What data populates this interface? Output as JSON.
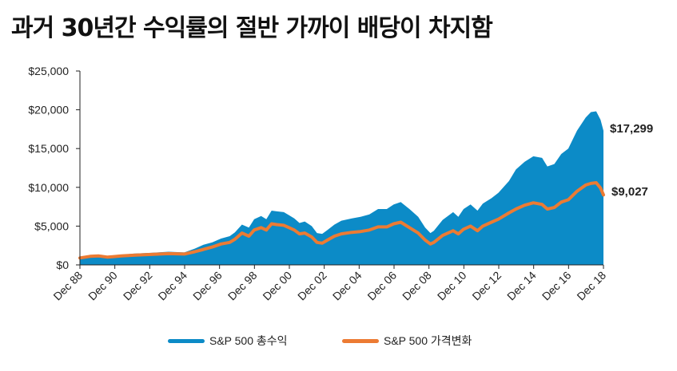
{
  "title": "과거 30년간 수익률의 절반 가까이 배당이 차지함",
  "colors": {
    "total": "#0c8bc7",
    "price": "#ec7b33",
    "axis": "#222222"
  },
  "chart_data": {
    "type": "area",
    "ylim": [
      0,
      25000
    ],
    "yticks": [
      "$0",
      "$5,000",
      "$10,000",
      "$15,000",
      "$20,000",
      "$25,000"
    ],
    "ytick_values": [
      0,
      5000,
      10000,
      15000,
      20000,
      25000
    ],
    "xlim": [
      1988.917,
      2018.917
    ],
    "xticks": [
      "Dec 88",
      "Dec 90",
      "Dec 92",
      "Dec 94",
      "Dec 96",
      "Dec 98",
      "Dec 00",
      "Dec 02",
      "Dec 04",
      "Dec 06",
      "Dec 08",
      "Dec 10",
      "Dec 12",
      "Dec 14",
      "Dec 16",
      "Dec 18"
    ],
    "xtick_values": [
      1988.917,
      1990.917,
      1992.917,
      1994.917,
      1996.917,
      1998.917,
      2000.917,
      2002.917,
      2004.917,
      2006.917,
      2008.917,
      2010.917,
      2012.917,
      2014.917,
      2016.917,
      2018.917
    ],
    "grid": false,
    "legend_position": "bottom",
    "series": [
      {
        "name": "S&P 500 총수익",
        "style": "area",
        "end_label": "$17,299",
        "x": [
          1988.917,
          1989.5,
          1990.0,
          1990.5,
          1990.8,
          1991.3,
          1992.0,
          1993.0,
          1994.0,
          1994.9,
          1995.5,
          1996.0,
          1996.5,
          1997.0,
          1997.5,
          1997.8,
          1998.2,
          1998.6,
          1998.9,
          1999.3,
          1999.6,
          1999.9,
          2000.2,
          2000.6,
          2000.9,
          2001.2,
          2001.5,
          2001.8,
          2002.2,
          2002.5,
          2002.8,
          2003.1,
          2003.5,
          2003.9,
          2004.5,
          2005.0,
          2005.5,
          2006.0,
          2006.5,
          2006.9,
          2007.3,
          2007.8,
          2008.3,
          2008.7,
          2009.0,
          2009.2,
          2009.7,
          2010.3,
          2010.6,
          2010.9,
          2011.3,
          2011.7,
          2012.0,
          2012.5,
          2012.9,
          2013.5,
          2013.9,
          2014.4,
          2014.9,
          2015.4,
          2015.7,
          2016.1,
          2016.5,
          2016.9,
          2017.4,
          2017.9,
          2018.2,
          2018.5,
          2018.75,
          2018.917
        ],
        "y": [
          1000,
          1200,
          1300,
          1150,
          1200,
          1300,
          1450,
          1550,
          1700,
          1600,
          2100,
          2600,
          2900,
          3400,
          3700,
          4200,
          5200,
          4800,
          5900,
          6300,
          5900,
          7000,
          6900,
          6800,
          6400,
          6000,
          5400,
          5600,
          5000,
          4100,
          4000,
          4500,
          5200,
          5700,
          6000,
          6200,
          6500,
          7200,
          7200,
          7800,
          8100,
          7200,
          6200,
          4800,
          4100,
          4400,
          5800,
          6800,
          6200,
          7200,
          7800,
          7000,
          7900,
          8600,
          9300,
          10800,
          12300,
          13300,
          14000,
          13800,
          12700,
          13000,
          14300,
          15000,
          17300,
          19000,
          19700,
          19800,
          18700,
          17299
        ]
      },
      {
        "name": "S&P 500 가격변화",
        "style": "line",
        "end_label": "$9,027",
        "x": [
          1988.917,
          1989.5,
          1990.0,
          1990.5,
          1990.8,
          1991.3,
          1992.0,
          1993.0,
          1994.0,
          1994.9,
          1995.5,
          1996.0,
          1996.5,
          1997.0,
          1997.5,
          1997.8,
          1998.2,
          1998.6,
          1998.9,
          1999.3,
          1999.6,
          1999.9,
          2000.2,
          2000.6,
          2000.9,
          2001.2,
          2001.5,
          2001.8,
          2002.2,
          2002.5,
          2002.8,
          2003.1,
          2003.5,
          2003.9,
          2004.5,
          2005.0,
          2005.5,
          2006.0,
          2006.5,
          2006.9,
          2007.3,
          2007.8,
          2008.3,
          2008.7,
          2009.0,
          2009.2,
          2009.7,
          2010.3,
          2010.6,
          2010.9,
          2011.3,
          2011.7,
          2012.0,
          2012.5,
          2012.9,
          2013.5,
          2013.9,
          2014.4,
          2014.9,
          2015.4,
          2015.7,
          2016.1,
          2016.5,
          2016.9,
          2017.4,
          2017.9,
          2018.2,
          2018.5,
          2018.75,
          2018.917
        ],
        "y": [
          900,
          1100,
          1150,
          1000,
          1050,
          1150,
          1250,
          1350,
          1450,
          1400,
          1700,
          2000,
          2300,
          2700,
          2900,
          3300,
          4100,
          3700,
          4500,
          4800,
          4500,
          5300,
          5200,
          5100,
          4800,
          4500,
          4000,
          4100,
          3600,
          2900,
          2800,
          3200,
          3700,
          4000,
          4200,
          4300,
          4500,
          4900,
          4900,
          5300,
          5500,
          4800,
          4100,
          3200,
          2700,
          2900,
          3800,
          4400,
          4000,
          4600,
          5000,
          4400,
          5000,
          5500,
          5900,
          6700,
          7200,
          7700,
          8000,
          7800,
          7200,
          7400,
          8100,
          8400,
          9500,
          10300,
          10500,
          10600,
          9900,
          9027
        ]
      }
    ]
  }
}
